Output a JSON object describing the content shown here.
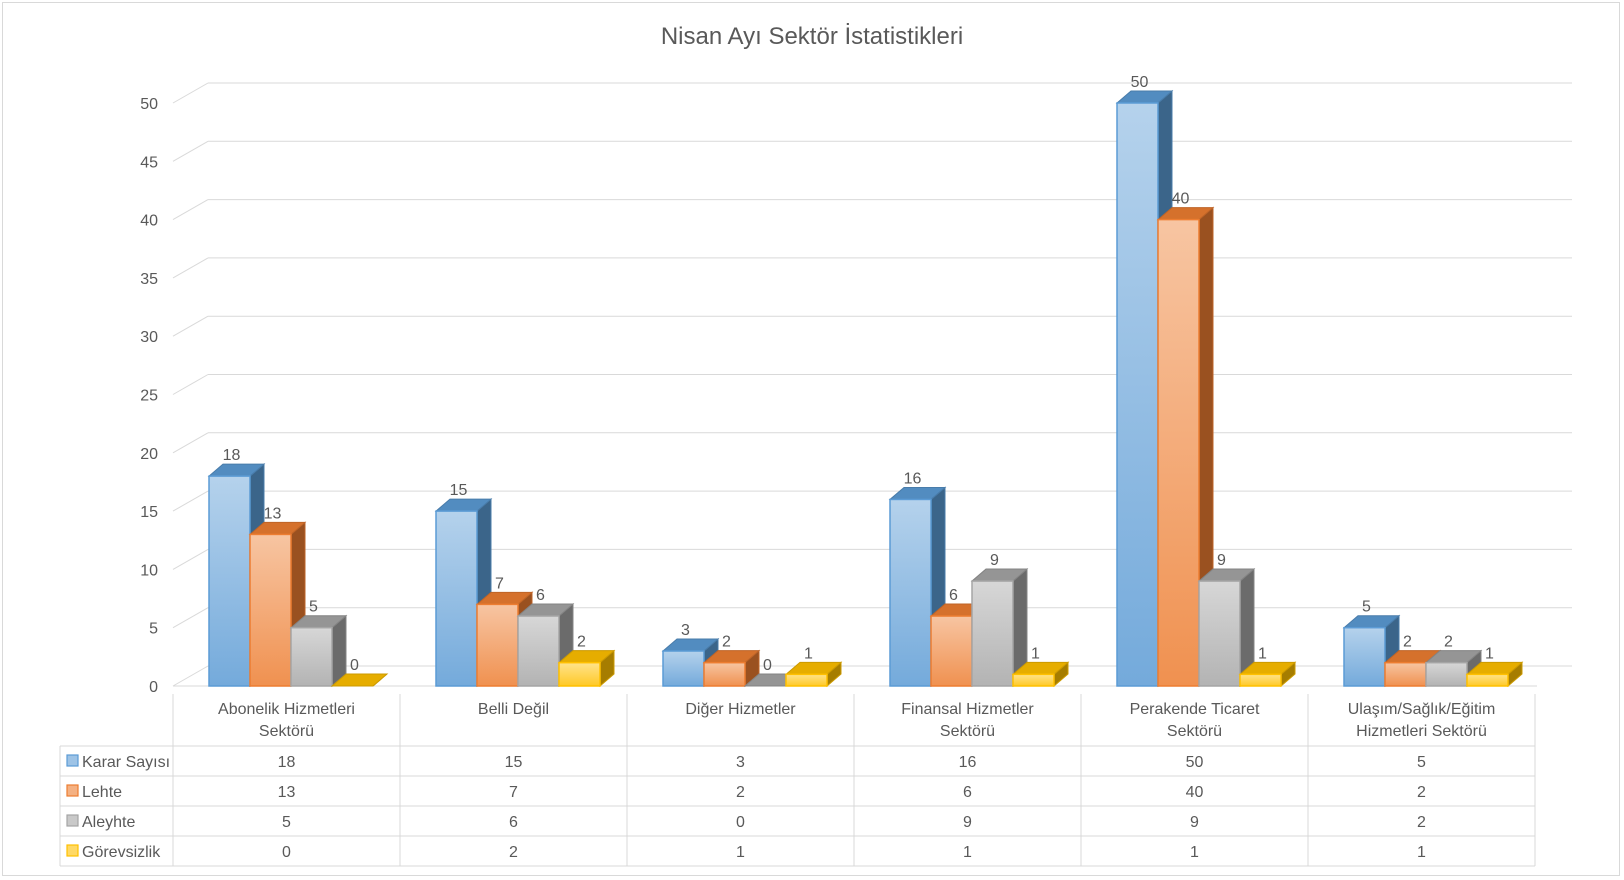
{
  "chart_data": {
    "type": "bar",
    "title": "Nisan Ayı Sektör İstatistikleri",
    "categories": [
      [
        "Abonelik Hizmetleri",
        "Sektörü"
      ],
      [
        "Belli Değil"
      ],
      [
        "Diğer Hizmetler"
      ],
      [
        "Finansal Hizmetler",
        "Sektörü"
      ],
      [
        "Perakende Ticaret",
        "Sektörü"
      ],
      [
        "Ulaşım/Sağlık/Eğitim",
        "Hizmetleri Sektörü"
      ]
    ],
    "series": [
      {
        "name": "Karar Sayısı",
        "values": [
          18,
          15,
          3,
          16,
          50,
          5
        ],
        "color": "#5b9bd5"
      },
      {
        "name": "Lehte",
        "values": [
          13,
          7,
          2,
          6,
          40,
          2
        ],
        "color": "#ed7d31"
      },
      {
        "name": "Aleyhte",
        "values": [
          5,
          6,
          0,
          9,
          9,
          2
        ],
        "color": "#a5a5a5"
      },
      {
        "name": "Görevsizlik",
        "values": [
          0,
          2,
          1,
          1,
          1,
          1
        ],
        "color": "#ffc000"
      }
    ],
    "ylim": [
      0,
      50
    ],
    "yticks": [
      0,
      5,
      10,
      15,
      20,
      25,
      30,
      35,
      40,
      45,
      50
    ],
    "grid": true,
    "style": "3d-column",
    "data_table": true
  }
}
